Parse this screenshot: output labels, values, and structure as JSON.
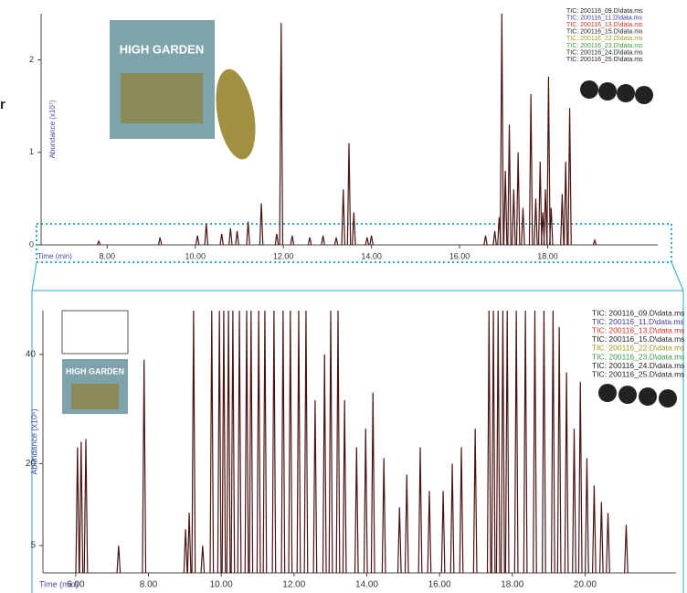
{
  "chart_data": [
    {
      "type": "line",
      "xlabel": "Time (min)",
      "ylabel": "Abundance (x10⁷)",
      "cropped_text": "r",
      "image_text": "HIGH GARDEN",
      "xlim": [
        6.5,
        20.5
      ],
      "ylim": [
        0,
        2.5
      ],
      "xticks": [
        {
          "value": 8,
          "label": "8.00"
        },
        {
          "value": 10,
          "label": "10.00"
        },
        {
          "value": 12,
          "label": "12.00"
        },
        {
          "value": 14,
          "label": "14.00"
        },
        {
          "value": 16,
          "label": "16.00"
        },
        {
          "value": 18,
          "label": "18.00"
        }
      ],
      "yticks": [
        0,
        1,
        2
      ],
      "legend": [
        {
          "name": "TIC: 200116_09.D\\data.ms",
          "color": "#222222"
        },
        {
          "name": "TIC: 200116_11.D\\data.ms",
          "color": "#3a3aa0"
        },
        {
          "name": "TIC: 200116_13.D\\data.ms",
          "color": "#d03020"
        },
        {
          "name": "TIC: 200116_15.D\\data.ms",
          "color": "#222222"
        },
        {
          "name": "TIC: 200116_22.D\\data.ms",
          "color": "#9a9a20"
        },
        {
          "name": "TIC: 200116_23.D\\data.ms",
          "color": "#3a9a3a"
        },
        {
          "name": "TIC: 200116_24.D\\data.ms",
          "color": "#222222"
        },
        {
          "name": "TIC: 200116_25.D\\data.ms",
          "color": "#222222"
        }
      ],
      "series": [
        {
          "color": "#4a1414",
          "x": [
            7.81,
            9.2,
            10.05,
            10.25,
            10.6,
            10.8,
            10.95,
            11.2,
            11.5,
            11.85,
            11.95,
            12.2,
            12.6,
            12.9,
            13.2,
            13.36,
            13.49,
            13.6,
            13.9,
            14.0,
            16.59,
            16.8,
            16.9,
            16.96,
            17.04,
            17.13,
            17.23,
            17.33,
            17.44,
            17.62,
            17.73,
            17.83,
            17.89,
            17.95,
            18.02,
            18.08,
            18.33,
            18.41,
            18.5,
            19.07
          ],
          "values": [
            0.04,
            0.08,
            0.1,
            0.23,
            0.12,
            0.18,
            0.15,
            0.25,
            0.45,
            0.12,
            2.4,
            0.1,
            0.08,
            0.1,
            0.08,
            0.6,
            1.1,
            0.35,
            0.08,
            0.1,
            0.1,
            0.15,
            0.3,
            2.5,
            0.8,
            1.3,
            0.6,
            1.0,
            0.4,
            1.63,
            0.5,
            0.9,
            0.35,
            0.6,
            1.82,
            0.4,
            0.55,
            0.9,
            1.48,
            0.05
          ]
        }
      ]
    },
    {
      "type": "line",
      "xlabel": "Time (min)",
      "ylabel": "Abundance (x10⁶)",
      "image_text": "HIGH GARDEN",
      "xlim": [
        5.1,
        22.5
      ],
      "ylim": [
        0,
        48
      ],
      "xticks": [
        {
          "value": 6,
          "label": "6.00"
        },
        {
          "value": 8,
          "label": "8.00"
        },
        {
          "value": 10,
          "label": "10.00"
        },
        {
          "value": 12,
          "label": "12.00"
        },
        {
          "value": 14,
          "label": "14.00"
        },
        {
          "value": 16,
          "label": "16.00"
        },
        {
          "value": 18,
          "label": "18.00"
        },
        {
          "value": 20,
          "label": "20.00"
        }
      ],
      "yticks": [
        5,
        20,
        40
      ],
      "legend": [
        {
          "name": "TIC: 200116_09.D\\data.ms",
          "color": "#222222"
        },
        {
          "name": "TIC: 200116_11.D\\data.ms",
          "color": "#3a3aa0"
        },
        {
          "name": "TIC: 200116_13.D\\data.ms",
          "color": "#d03020"
        },
        {
          "name": "TIC: 200116_15.D\\data.ms",
          "color": "#222222"
        },
        {
          "name": "TIC: 200116_22.D\\data.ms",
          "color": "#9a9a20"
        },
        {
          "name": "TIC: 200116_23.D\\data.ms",
          "color": "#3a9a3a"
        },
        {
          "name": "TIC: 200116_24.D\\data.ms",
          "color": "#222222"
        },
        {
          "name": "TIC: 200116_25.D\\data.ms",
          "color": "#222222"
        }
      ],
      "series": [
        {
          "color": "#4a1414",
          "x": [
            6.05,
            6.15,
            6.28,
            7.18,
            7.88,
            9.02,
            9.12,
            9.24,
            9.49,
            9.74,
            9.95,
            10.07,
            10.2,
            10.32,
            10.5,
            10.7,
            10.82,
            11.03,
            11.2,
            11.45,
            11.7,
            11.9,
            12.13,
            12.33,
            12.58,
            12.84,
            13.01,
            13.21,
            13.39,
            13.72,
            13.97,
            14.17,
            14.47,
            14.9,
            15.1,
            15.47,
            15.72,
            16.1,
            16.35,
            16.6,
            16.98,
            17.36,
            17.48,
            17.61,
            17.74,
            17.86,
            18.11,
            18.36,
            18.62,
            18.87,
            19.12,
            19.29,
            19.49,
            19.7,
            19.87,
            20.05,
            20.25,
            20.45,
            20.63,
            21.13
          ],
          "values": [
            23,
            24,
            24.5,
            5,
            39,
            8,
            11,
            48,
            5,
            48,
            48,
            48,
            48,
            48,
            48,
            48,
            48,
            48,
            48,
            48,
            48,
            48,
            48,
            48,
            31.6,
            40,
            48,
            48,
            31.6,
            23,
            26.4,
            33,
            21,
            12,
            18,
            23,
            15,
            15,
            20,
            23,
            26.4,
            48,
            48,
            48,
            48,
            48,
            48,
            48,
            48,
            48,
            48,
            45,
            36.7,
            26.4,
            35,
            21,
            16,
            13,
            11,
            8.8
          ]
        }
      ]
    }
  ]
}
